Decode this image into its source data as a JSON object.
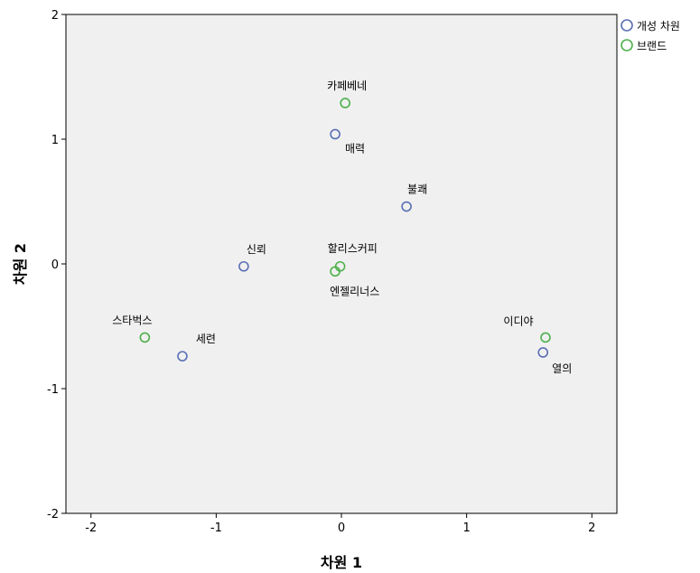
{
  "chart_data": {
    "type": "scatter",
    "title": "",
    "xlabel": "차원 1",
    "ylabel": "차원 2",
    "xlim": [
      -2.2,
      2.2
    ],
    "ylim": [
      -2,
      2
    ],
    "x_ticks": [
      -2,
      -1,
      0,
      1,
      2
    ],
    "y_ticks": [
      -2,
      -1,
      0,
      1,
      2
    ],
    "x_tick_labels": [
      "-2",
      "-1",
      "0",
      "1",
      "2"
    ],
    "y_tick_labels": [
      "-2",
      "-1",
      "0",
      "1",
      "2"
    ],
    "grid": false,
    "plot_background": "#f0f0f0",
    "legend_position": "top-right-outside",
    "series": [
      {
        "name": "개성 차원",
        "color": "#5a6fb5",
        "points": [
          {
            "label": "매력",
            "x": -0.05,
            "y": 1.04
          },
          {
            "label": "불쾌",
            "x": 0.52,
            "y": 0.46
          },
          {
            "label": "신뢰",
            "x": -0.78,
            "y": -0.02
          },
          {
            "label": "세련",
            "x": -1.27,
            "y": -0.74
          },
          {
            "label": "열의",
            "x": 1.61,
            "y": -0.71
          }
        ]
      },
      {
        "name": "브랜드",
        "color": "#4db04a",
        "points": [
          {
            "label": "카페베네",
            "x": 0.03,
            "y": 1.29
          },
          {
            "label": "할리스커피",
            "x": -0.01,
            "y": -0.02
          },
          {
            "label": "엔젤리너스",
            "x": -0.05,
            "y": -0.06
          },
          {
            "label": "스타벅스",
            "x": -1.57,
            "y": -0.59
          },
          {
            "label": "이디야",
            "x": 1.63,
            "y": -0.59
          }
        ]
      }
    ]
  }
}
